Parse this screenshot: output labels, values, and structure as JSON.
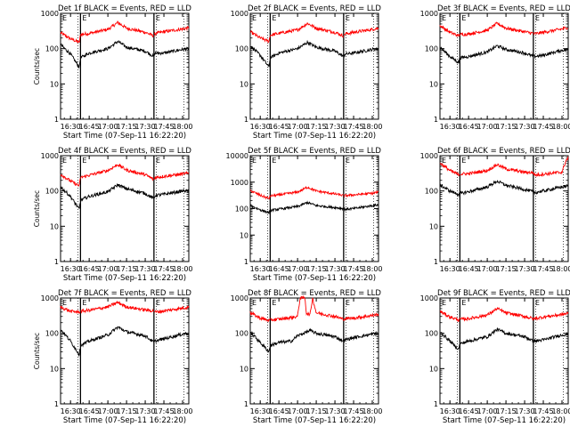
{
  "chart_data": [
    {
      "type": "line",
      "title": "Det 1f BLACK = Events, RED = LLD",
      "xlabel": "Start Time (07-Sep-11 16:22:20)",
      "ylabel": "Counts/sec",
      "yscale": "log",
      "ylim": [
        1,
        1000
      ],
      "xlim": [
        "16:22",
        "18:05"
      ],
      "x_ticks": [
        "16:30",
        "16:45",
        "17:00",
        "17:15",
        "17:30",
        "17:45",
        "18:00"
      ],
      "y_ticks": [
        "1",
        "10",
        "100",
        "1000"
      ],
      "annotations": [
        "E",
        "E",
        "E"
      ],
      "markers": [
        "16:38",
        "17:37"
      ],
      "series": [
        {
          "color": "#ff0000",
          "x": [
            "16:22",
            "16:30",
            "16:37",
            "16:38",
            "16:45",
            "17:00",
            "17:08",
            "17:15",
            "17:30",
            "17:37",
            "17:38",
            "17:45",
            "18:00",
            "18:05"
          ],
          "values": [
            280,
            190,
            150,
            250,
            270,
            350,
            550,
            380,
            290,
            230,
            270,
            300,
            360,
            390
          ]
        },
        {
          "color": "#000000",
          "x": [
            "16:22",
            "16:30",
            "16:37",
            "16:38",
            "16:45",
            "17:00",
            "17:08",
            "17:15",
            "17:30",
            "17:37",
            "17:38",
            "17:45",
            "18:00",
            "18:05"
          ],
          "values": [
            130,
            70,
            30,
            55,
            75,
            100,
            160,
            110,
            85,
            60,
            75,
            75,
            95,
            100
          ]
        }
      ]
    },
    {
      "type": "line",
      "title": "Det 2f BLACK = Events, RED = LLD",
      "xlabel": "Start Time (07-Sep-11 16:22:20)",
      "ylabel": "",
      "yscale": "log",
      "ylim": [
        1,
        1000
      ],
      "xlim": [
        "16:22",
        "18:05"
      ],
      "x_ticks": [
        "16:30",
        "16:45",
        "17:00",
        "17:15",
        "17:30",
        "17:45",
        "18:00"
      ],
      "y_ticks": [
        "1",
        "10",
        "100",
        "1000"
      ],
      "annotations": [
        "E",
        "E",
        "E"
      ],
      "markers": [
        "16:38",
        "17:37"
      ],
      "series": [
        {
          "color": "#ff0000",
          "x": [
            "16:22",
            "16:30",
            "16:37",
            "16:38",
            "16:45",
            "17:00",
            "17:08",
            "17:15",
            "17:30",
            "17:37",
            "17:38",
            "17:45",
            "18:00",
            "18:05"
          ],
          "values": [
            300,
            200,
            160,
            240,
            270,
            340,
            520,
            380,
            290,
            230,
            260,
            290,
            350,
            380
          ]
        },
        {
          "color": "#000000",
          "x": [
            "16:22",
            "16:30",
            "16:37",
            "16:38",
            "16:45",
            "17:00",
            "17:08",
            "17:15",
            "17:30",
            "17:37",
            "17:38",
            "17:45",
            "18:00",
            "18:05"
          ],
          "values": [
            120,
            65,
            30,
            55,
            75,
            100,
            150,
            110,
            85,
            60,
            70,
            75,
            95,
            100
          ]
        }
      ]
    },
    {
      "type": "line",
      "title": "Det 3f BLACK = Events, RED = LLD",
      "xlabel": "",
      "ylabel": "",
      "yscale": "log",
      "ylim": [
        1,
        1000
      ],
      "xlim": [
        "16:22",
        "18:05"
      ],
      "x_ticks": [
        "16:30",
        "16:45",
        "17:00",
        "17:15",
        "17:30",
        "17:45",
        "18:00"
      ],
      "y_ticks": [
        "1",
        "10",
        "100",
        "1000"
      ],
      "annotations": [
        "E",
        "E",
        "E"
      ],
      "markers": [
        "16:38",
        "17:37"
      ],
      "series": [
        {
          "color": "#ff0000",
          "x": [
            "16:22",
            "16:30",
            "16:37",
            "16:38",
            "16:45",
            "17:00",
            "17:08",
            "17:15",
            "17:30",
            "17:37",
            "17:38",
            "17:45",
            "18:00",
            "18:05"
          ],
          "values": [
            450,
            290,
            230,
            250,
            260,
            330,
            520,
            380,
            300,
            270,
            260,
            290,
            360,
            400
          ]
        },
        {
          "color": "#000000",
          "x": [
            "16:22",
            "16:30",
            "16:37",
            "16:38",
            "16:45",
            "17:00",
            "17:08",
            "17:15",
            "17:30",
            "17:37",
            "17:38",
            "17:45",
            "18:00",
            "18:05"
          ],
          "values": [
            110,
            60,
            40,
            55,
            60,
            80,
            120,
            95,
            75,
            60,
            60,
            65,
            90,
            95
          ]
        }
      ]
    },
    {
      "type": "line",
      "title": "Det 4f BLACK = Events, RED = LLD",
      "xlabel": "Start Time (07-Sep-11 16:22:20)",
      "ylabel": "Counts/sec",
      "yscale": "log",
      "ylim": [
        1,
        1000
      ],
      "xlim": [
        "16:22",
        "18:05"
      ],
      "x_ticks": [
        "16:30",
        "16:45",
        "17:00",
        "17:15",
        "17:30",
        "17:45",
        "18:00"
      ],
      "y_ticks": [
        "1",
        "10",
        "100",
        "1000"
      ],
      "annotations": [
        "E",
        "E",
        "E"
      ],
      "markers": [
        "16:38",
        "17:37"
      ],
      "series": [
        {
          "color": "#ff0000",
          "x": [
            "16:22",
            "16:30",
            "16:37",
            "16:38",
            "16:45",
            "17:00",
            "17:08",
            "17:15",
            "17:30",
            "17:37",
            "17:38",
            "17:45",
            "18:00",
            "18:05"
          ],
          "values": [
            300,
            190,
            140,
            240,
            280,
            380,
            560,
            390,
            290,
            210,
            240,
            260,
            300,
            320
          ]
        },
        {
          "color": "#000000",
          "x": [
            "16:22",
            "16:30",
            "16:37",
            "16:38",
            "16:45",
            "17:00",
            "17:08",
            "17:15",
            "17:30",
            "17:37",
            "17:38",
            "17:45",
            "18:00",
            "18:05"
          ],
          "values": [
            130,
            70,
            30,
            55,
            70,
            95,
            150,
            115,
            85,
            60,
            75,
            80,
            100,
            100
          ]
        }
      ]
    },
    {
      "type": "line",
      "title": "Det 5f BLACK = Events, RED = LLD",
      "xlabel": "Start Time (07-Sep-11 16:22:20)",
      "ylabel": "",
      "yscale": "log",
      "ylim": [
        1,
        10000
      ],
      "xlim": [
        "16:22",
        "18:05"
      ],
      "x_ticks": [
        "16:30",
        "16:45",
        "17:00",
        "17:15",
        "17:30",
        "17:45",
        "18:00"
      ],
      "y_ticks": [
        "1",
        "10",
        "100",
        "1000",
        "10000"
      ],
      "annotations": [
        "E",
        "E",
        "E"
      ],
      "markers": [
        "16:38",
        "17:37"
      ],
      "series": [
        {
          "color": "#ff0000",
          "x": [
            "16:22",
            "16:30",
            "16:37",
            "16:38",
            "16:45",
            "17:00",
            "17:08",
            "17:15",
            "17:30",
            "17:37",
            "17:38",
            "17:45",
            "18:00",
            "18:05"
          ],
          "values": [
            480,
            320,
            240,
            300,
            330,
            420,
            650,
            460,
            360,
            310,
            310,
            330,
            380,
            420
          ]
        },
        {
          "color": "#000000",
          "x": [
            "16:22",
            "16:30",
            "16:37",
            "16:38",
            "16:45",
            "17:00",
            "17:08",
            "17:15",
            "17:30",
            "17:37",
            "17:38",
            "17:45",
            "18:00",
            "18:05"
          ],
          "values": [
            130,
            90,
            70,
            85,
            95,
            120,
            170,
            130,
            110,
            100,
            95,
            100,
            130,
            140
          ]
        }
      ]
    },
    {
      "type": "line",
      "title": "Det 6f BLACK = Events, RED = LLD",
      "xlabel": "",
      "ylabel": "",
      "yscale": "log",
      "ylim": [
        1,
        1000
      ],
      "xlim": [
        "16:22",
        "18:05"
      ],
      "x_ticks": [
        "16:30",
        "16:45",
        "17:00",
        "17:15",
        "17:30",
        "17:45",
        "18:00"
      ],
      "y_ticks": [
        "1",
        "10",
        "100",
        "1000"
      ],
      "annotations": [
        "E",
        "E",
        "E"
      ],
      "markers": [
        "16:38",
        "17:37"
      ],
      "series": [
        {
          "color": "#ff0000",
          "x": [
            "16:22",
            "16:30",
            "16:37",
            "16:38",
            "16:45",
            "17:00",
            "17:08",
            "17:15",
            "17:30",
            "17:37",
            "17:38",
            "17:45",
            "18:00",
            "18:03",
            "18:05"
          ],
          "values": [
            620,
            380,
            290,
            300,
            310,
            380,
            560,
            420,
            340,
            330,
            280,
            300,
            340,
            700,
            880
          ]
        },
        {
          "color": "#000000",
          "x": [
            "16:22",
            "16:30",
            "16:37",
            "16:38",
            "16:45",
            "17:00",
            "17:08",
            "17:15",
            "17:30",
            "17:37",
            "17:38",
            "17:45",
            "18:00",
            "18:05"
          ],
          "values": [
            150,
            100,
            80,
            85,
            95,
            130,
            190,
            145,
            110,
            95,
            90,
            100,
            130,
            140
          ]
        }
      ]
    },
    {
      "type": "line",
      "title": "Det 7f BLACK = Events, RED = LLD",
      "xlabel": "Start Time (07-Sep-11 16:22:20)",
      "ylabel": "Counts/sec",
      "yscale": "log",
      "ylim": [
        1,
        1000
      ],
      "xlim": [
        "16:22",
        "18:05"
      ],
      "x_ticks": [
        "16:30",
        "16:45",
        "17:00",
        "17:15",
        "17:30",
        "17:45",
        "18:00"
      ],
      "y_ticks": [
        "1",
        "10",
        "100",
        "1000"
      ],
      "annotations": [
        "E",
        "E",
        "E"
      ],
      "markers": [
        "16:38",
        "17:37"
      ],
      "series": [
        {
          "color": "#ff0000",
          "x": [
            "16:22",
            "16:30",
            "16:37",
            "16:38",
            "16:45",
            "17:00",
            "17:08",
            "17:15",
            "17:30",
            "17:37",
            "17:38",
            "17:45",
            "18:00",
            "18:05"
          ],
          "values": [
            550,
            420,
            400,
            420,
            450,
            560,
            750,
            560,
            460,
            430,
            400,
            430,
            520,
            550
          ]
        },
        {
          "color": "#000000",
          "x": [
            "16:22",
            "16:30",
            "16:37",
            "16:38",
            "16:45",
            "17:00",
            "17:08",
            "17:15",
            "17:30",
            "17:37",
            "17:38",
            "17:45",
            "18:00",
            "18:05"
          ],
          "values": [
            130,
            60,
            25,
            45,
            60,
            90,
            150,
            110,
            85,
            55,
            60,
            70,
            95,
            100
          ]
        }
      ]
    },
    {
      "type": "line",
      "title": "Det 8f BLACK = Events, RED = LLD",
      "xlabel": "Start Time (07-Sep-11 16:22:20)",
      "ylabel": "",
      "yscale": "log",
      "ylim": [
        1,
        1000
      ],
      "xlim": [
        "16:22",
        "18:05"
      ],
      "x_ticks": [
        "16:30",
        "16:45",
        "17:00",
        "17:15",
        "17:30",
        "17:45",
        "18:00"
      ],
      "y_ticks": [
        "1",
        "10",
        "100",
        "1000"
      ],
      "annotations": [
        "E",
        "E",
        "E"
      ],
      "markers": [
        "16:38",
        "17:37"
      ],
      "series": [
        {
          "color": "#ff0000",
          "x": [
            "16:22",
            "16:30",
            "16:37",
            "16:38",
            "16:45",
            "16:55",
            "17:00",
            "17:02",
            "17:06",
            "17:07",
            "17:10",
            "17:12",
            "17:15",
            "17:30",
            "17:37",
            "17:38",
            "17:45",
            "18:00",
            "18:05"
          ],
          "values": [
            380,
            270,
            230,
            240,
            250,
            280,
            300,
            1000,
            1000,
            380,
            330,
            1000,
            380,
            300,
            250,
            260,
            270,
            320,
            340
          ]
        },
        {
          "color": "#000000",
          "x": [
            "16:22",
            "16:30",
            "16:37",
            "16:38",
            "16:45",
            "16:55",
            "17:00",
            "17:10",
            "17:15",
            "17:30",
            "17:37",
            "17:38",
            "17:45",
            "18:00",
            "18:05"
          ],
          "values": [
            110,
            55,
            30,
            45,
            55,
            60,
            85,
            120,
            100,
            80,
            60,
            65,
            75,
            95,
            100
          ]
        }
      ]
    },
    {
      "type": "line",
      "title": "Det 9f BLACK = Events, RED = LLD",
      "xlabel": "Start Time (07-Sep-11 16:22:20)",
      "ylabel": "",
      "yscale": "log",
      "ylim": [
        1,
        1000
      ],
      "xlim": [
        "16:22",
        "18:05"
      ],
      "x_ticks": [
        "16:30",
        "16:45",
        "17:00",
        "17:15",
        "17:30",
        "17:45",
        "18:00"
      ],
      "y_ticks": [
        "1",
        "10",
        "100",
        "1000"
      ],
      "annotations": [
        "E",
        "E",
        "E"
      ],
      "markers": [
        "16:38",
        "17:37"
      ],
      "series": [
        {
          "color": "#ff0000",
          "x": [
            "16:22",
            "16:30",
            "16:37",
            "16:38",
            "16:45",
            "17:00",
            "17:08",
            "17:15",
            "17:30",
            "17:37",
            "17:38",
            "17:45",
            "18:00",
            "18:05"
          ],
          "values": [
            420,
            290,
            240,
            250,
            260,
            330,
            500,
            380,
            300,
            260,
            260,
            290,
            340,
            370
          ]
        },
        {
          "color": "#000000",
          "x": [
            "16:22",
            "16:30",
            "16:37",
            "16:38",
            "16:45",
            "17:00",
            "17:08",
            "17:15",
            "17:30",
            "17:37",
            "17:38",
            "17:45",
            "18:00",
            "18:05"
          ],
          "values": [
            110,
            60,
            35,
            50,
            60,
            80,
            130,
            100,
            80,
            60,
            60,
            65,
            90,
            95
          ]
        }
      ]
    }
  ]
}
